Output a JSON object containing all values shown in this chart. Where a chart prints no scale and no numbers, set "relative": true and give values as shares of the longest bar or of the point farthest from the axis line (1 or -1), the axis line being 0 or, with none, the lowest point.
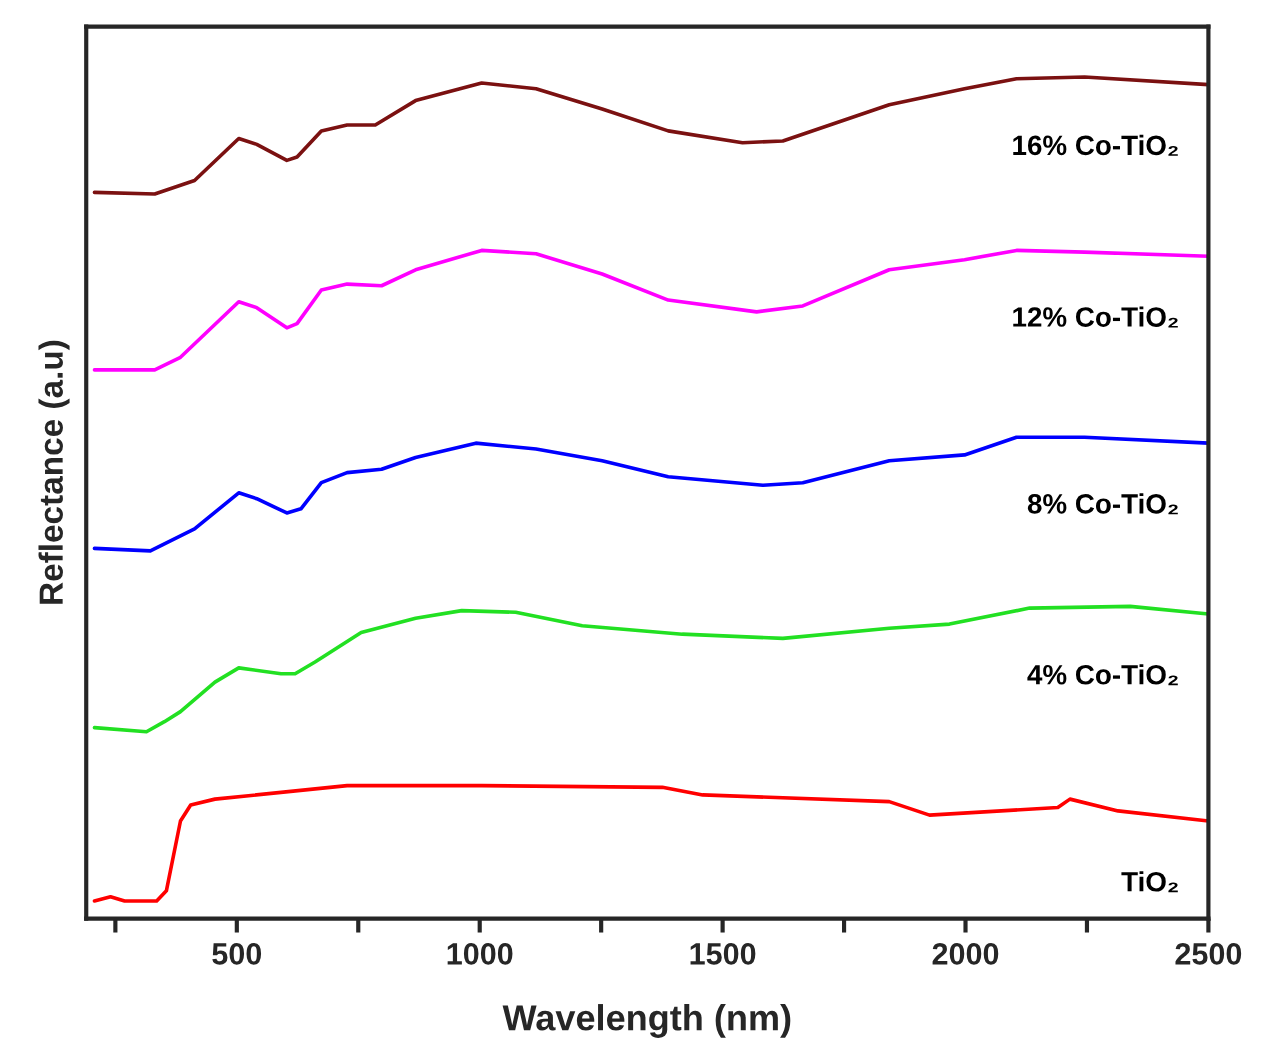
{
  "chart_data": {
    "type": "line",
    "relative": true,
    "xlabel": "Wavelength (nm)",
    "ylabel": "Reflectance (a.u)",
    "xlim": [
      190,
      2500
    ],
    "xticks": [
      {
        "value": 250,
        "label": null
      },
      500,
      {
        "value": 750,
        "label": null
      },
      1000,
      {
        "value": 1250,
        "label": null
      },
      1500,
      {
        "value": 1750,
        "label": null
      },
      2000,
      {
        "value": 2250,
        "label": null
      },
      2500
    ],
    "grid": false,
    "legend": false,
    "marker": "none",
    "line_style": "solid",
    "series": [
      {
        "name": "16% Co-TiO₂",
        "color": "#7b1111",
        "x": [
          207,
          331,
          413,
          504,
          541,
          603,
          624,
          674,
          727,
          785,
          868,
          1004,
          1116,
          1252,
          1388,
          1541,
          1624,
          1843,
          1998,
          2105,
          2245,
          2500
        ],
        "values": [
          0.863,
          0.861,
          0.877,
          0.927,
          0.92,
          0.901,
          0.905,
          0.936,
          0.943,
          0.943,
          0.972,
          0.993,
          0.986,
          0.962,
          0.936,
          0.922,
          0.924,
          0.967,
          0.986,
          0.998,
          1.0,
          0.991
        ]
      },
      {
        "name": "12% Co-TiO₂",
        "color": "#ff00ff",
        "x": [
          207,
          331,
          384,
          504,
          541,
          603,
          624,
          674,
          727,
          798,
          868,
          1004,
          1116,
          1252,
          1388,
          1570,
          1665,
          1843,
          1998,
          2105,
          2245,
          2500
        ],
        "values": [
          0.652,
          0.652,
          0.667,
          0.733,
          0.726,
          0.702,
          0.707,
          0.747,
          0.754,
          0.752,
          0.771,
          0.794,
          0.79,
          0.766,
          0.735,
          0.721,
          0.728,
          0.771,
          0.783,
          0.794,
          0.792,
          0.787
        ]
      },
      {
        "name": "8% Co-TiO₂",
        "color": "#0000ff",
        "x": [
          207,
          322,
          413,
          504,
          541,
          603,
          632,
          674,
          727,
          798,
          868,
          992,
          1116,
          1252,
          1388,
          1583,
          1665,
          1843,
          1998,
          2105,
          2245,
          2500
        ],
        "values": [
          0.44,
          0.437,
          0.463,
          0.506,
          0.499,
          0.482,
          0.487,
          0.518,
          0.53,
          0.534,
          0.548,
          0.565,
          0.558,
          0.544,
          0.525,
          0.515,
          0.518,
          0.544,
          0.551,
          0.572,
          0.572,
          0.565
        ]
      },
      {
        "name": "4% Co-TiO₂",
        "color": "#22e022",
        "x": [
          207,
          314,
          351,
          384,
          455,
          504,
          591,
          620,
          661,
          756,
          868,
          963,
          1074,
          1211,
          1417,
          1624,
          1843,
          1967,
          2132,
          2339,
          2500
        ],
        "values": [
          0.227,
          0.222,
          0.234,
          0.246,
          0.281,
          0.298,
          0.291,
          0.291,
          0.305,
          0.34,
          0.357,
          0.366,
          0.364,
          0.348,
          0.338,
          0.333,
          0.345,
          0.35,
          0.369,
          0.371,
          0.362
        ]
      },
      {
        "name": "TiO₂",
        "color": "#ff0000",
        "x": [
          207,
          240,
          269,
          335,
          355,
          384,
          405,
          455,
          727,
          1004,
          1376,
          1459,
          1843,
          1926,
          2190,
          2215,
          2314,
          2500
        ],
        "values": [
          0.021,
          0.026,
          0.021,
          0.021,
          0.033,
          0.116,
          0.135,
          0.142,
          0.158,
          0.158,
          0.156,
          0.147,
          0.139,
          0.123,
          0.132,
          0.142,
          0.128,
          0.116
        ]
      }
    ]
  }
}
